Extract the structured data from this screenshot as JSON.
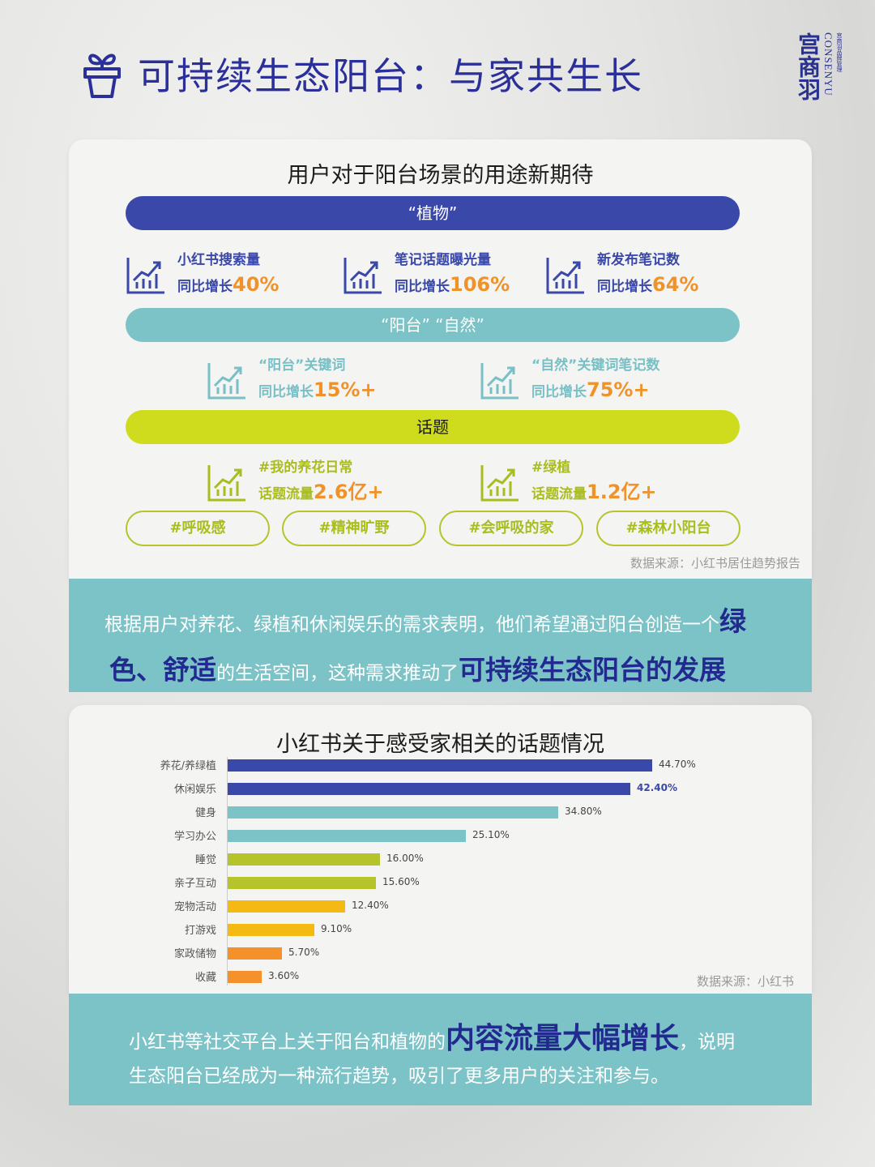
{
  "header": {
    "title": "可持续生态阳台：与家共生长",
    "brand_cn": "宫商羽",
    "brand_en": "CONSENYU",
    "brand_sub": "宫商羽品牌管理"
  },
  "section1": {
    "title": "用户对于阳台场景的用途新期待",
    "plants_pill": "“植物”",
    "plants_stats": [
      {
        "label": "小红书搜索量",
        "prefix": "同比增长",
        "value": "40%"
      },
      {
        "label": "笔记话题曝光量",
        "prefix": "同比增长",
        "value": "106%"
      },
      {
        "label": "新发布笔记数",
        "prefix": "同比增长",
        "value": "64%"
      }
    ],
    "keywords_pill": "“阳台”  “自然”",
    "keyword_stats": [
      {
        "label": "“阳台”关键词",
        "prefix": "同比增长",
        "value": "15%+"
      },
      {
        "label": "“自然”关键词笔记数",
        "prefix": "同比增长",
        "value": "75%+"
      }
    ],
    "topics_pill": "话题",
    "topic_stats": [
      {
        "label": "#我的养花日常",
        "prefix": "话题流量",
        "value": "2.6亿+"
      },
      {
        "label": "#绿植",
        "prefix": "话题流量",
        "value": "1.2亿+"
      }
    ],
    "tags": [
      "#呼吸感",
      "#精神旷野",
      "#会呼吸的家",
      "#森林小阳台"
    ],
    "source": "数据来源：小红书居住趋势报告"
  },
  "band1": {
    "line1_text": "根据用户对养花、绿植和休闲娱乐的需求表明，他们希望通过阳台创造一个",
    "line1_hl": "绿",
    "line2_hl1": "色、舒适",
    "line2_text": "的生活空间，这种需求推动了",
    "line2_hl2": "可持续生态阳台的发展"
  },
  "section2": {
    "source": "数据来源：小红书"
  },
  "band2": {
    "line1_text": "小红书等社交平台上关于阳台和植物的",
    "line1_hl": "内容流量大幅增长",
    "line1_tail": "，说明",
    "line2_text": "生态阳台已经成为一种流行趋势，吸引了更多用户的关注和参与。"
  },
  "colors": {
    "brand_blue": "#2a2f9a",
    "bar_blue": "#3a48aa",
    "teal": "#7cc3c8",
    "lime": "#cfdc1e",
    "olive": "#b5c42a",
    "yellow": "#f5b914",
    "orange": "#f5912a",
    "accent_orange": "#f0922a"
  },
  "chart_data": {
    "type": "bar",
    "orientation": "horizontal",
    "title": "小红书关于感受家相关的话题情况",
    "categories": [
      "养花/养绿植",
      "休闲娱乐",
      "健身",
      "学习办公",
      "睡觉",
      "亲子互动",
      "宠物活动",
      "打游戏",
      "家政储物",
      "收藏"
    ],
    "values": [
      44.7,
      42.4,
      34.8,
      25.1,
      16.0,
      15.6,
      12.4,
      9.1,
      5.7,
      3.6
    ],
    "value_labels": [
      "44.70%",
      "42.40%",
      "34.80%",
      "25.10%",
      "16.00%",
      "15.60%",
      "12.40%",
      "9.10%",
      "5.70%",
      "3.60%"
    ],
    "bar_colors": [
      "#3a48aa",
      "#3a48aa",
      "#7cc3c8",
      "#7cc3c8",
      "#b5c42a",
      "#b5c42a",
      "#f5b914",
      "#f5b914",
      "#f5912a",
      "#f5912a"
    ],
    "xlabel": "",
    "ylabel": "",
    "unit": "%",
    "xlim": [
      0,
      45
    ],
    "grid": false,
    "legend": null,
    "source": "数据来源：小红书"
  }
}
